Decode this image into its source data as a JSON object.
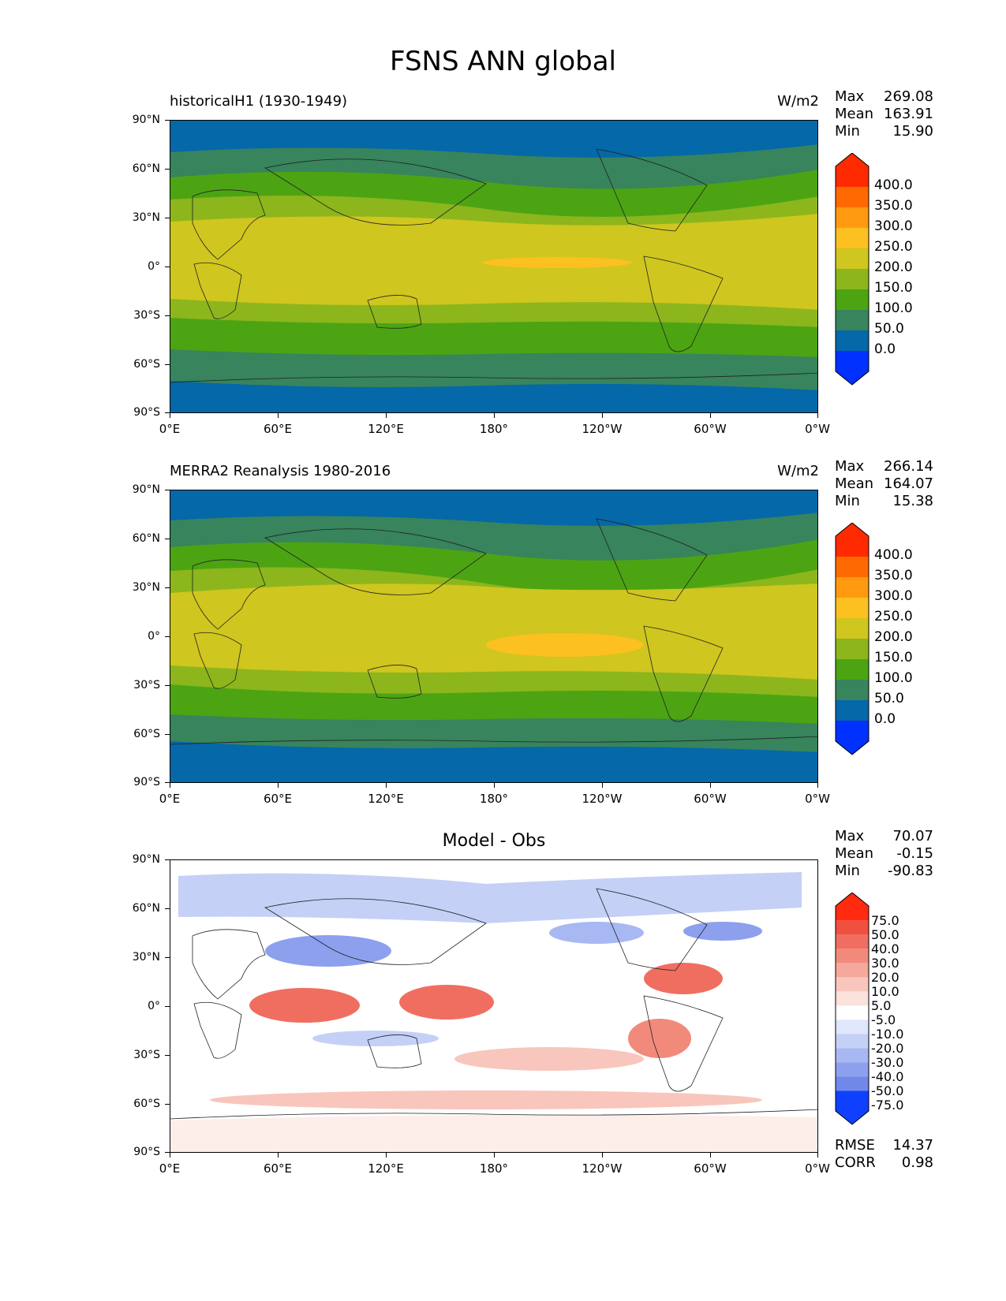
{
  "figure": {
    "title": "FSNS ANN global"
  },
  "axes": {
    "y_ticks": [
      "90°N",
      "60°N",
      "30°N",
      "0°",
      "30°S",
      "60°S",
      "90°S"
    ],
    "x_ticks": [
      "0°E",
      "60°E",
      "120°E",
      "180°",
      "120°W",
      "60°W",
      "0°W"
    ]
  },
  "panels": [
    {
      "title_left": "historicalH1 (1930-1949)",
      "units": "W/m2",
      "stats": {
        "max_label": "Max",
        "max": "269.08",
        "mean_label": "Mean",
        "mean": "163.91",
        "min_label": "Min",
        "min": "15.90"
      }
    },
    {
      "title_left": "MERRA2 Reanalysis 1980-2016",
      "units": "W/m2",
      "stats": {
        "max_label": "Max",
        "max": "266.14",
        "mean_label": "Mean",
        "mean": "164.07",
        "min_label": "Min",
        "min": "15.38"
      }
    },
    {
      "title_center": "Model - Obs",
      "stats": {
        "max_label": "Max",
        "max": "70.07",
        "mean_label": "Mean",
        "mean": "-0.15",
        "min_label": "Min",
        "min": "-90.83"
      },
      "metrics": {
        "rmse_label": "RMSE",
        "rmse": "14.37",
        "corr_label": "CORR",
        "corr": "0.98"
      }
    }
  ],
  "colorbars": {
    "field": {
      "labels": [
        "400.0",
        "350.0",
        "300.0",
        "250.0",
        "200.0",
        "150.0",
        "100.0",
        "50.0",
        "0.0"
      ],
      "colors": [
        "#ff2a00",
        "#ff6a00",
        "#ff9a10",
        "#fcc020",
        "#cfc61f",
        "#8cb61c",
        "#4ca413",
        "#38845c",
        "#0568a8",
        "#0031ff"
      ]
    },
    "diff": {
      "labels": [
        "75.0",
        "50.0",
        "40.0",
        "30.0",
        "20.0",
        "10.0",
        "5.0",
        "-5.0",
        "-10.0",
        "-20.0",
        "-30.0",
        "-40.0",
        "-50.0",
        "-75.0"
      ],
      "colors": [
        "#ff2a10",
        "#f05040",
        "#f06e60",
        "#f28a7c",
        "#f5a89c",
        "#f8c6bc",
        "#fbe2dc",
        "#ffffff",
        "#e0e6fb",
        "#c4d0f6",
        "#a8b8f2",
        "#8ca0ee",
        "#7088ea",
        "#5070e8",
        "#1040ff"
      ]
    }
  },
  "map_colors": {
    "polar": "#0568a8",
    "subpolar": "#38845c",
    "midlat": "#4ca413",
    "subtrop": "#8cb61c",
    "tropics": "#cfc61f",
    "peak": "#fcc020",
    "coast": "#222222"
  }
}
